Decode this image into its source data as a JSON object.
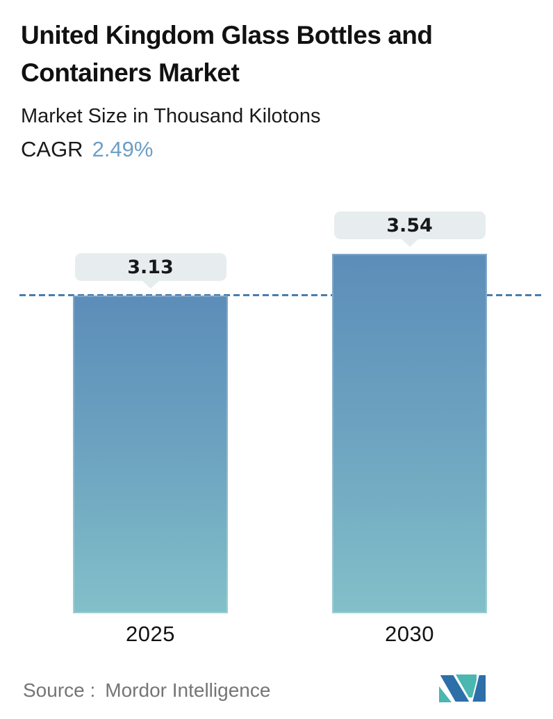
{
  "header": {
    "title": "United Kingdom Glass Bottles and Containers Market",
    "subtitle": "Market Size in Thousand Kilotons",
    "cagr_label": "CAGR",
    "cagr_value": "2.49%"
  },
  "chart_data": {
    "type": "bar",
    "title": "United Kingdom Glass Bottles and Containers Market",
    "ylabel": "Market Size in Thousand Kilotons",
    "cagr_percent": 2.49,
    "categories": [
      "2025",
      "2030"
    ],
    "values": [
      3.13,
      3.54
    ],
    "unit": "Thousand Kilotons",
    "ylim": [
      0,
      3.54
    ],
    "grid": false,
    "legend": false,
    "reference_line_value": 3.13,
    "reference_line_style": "dashed",
    "reference_line_color": "#4a7dac",
    "bar_gradient_top": "#5c8db9",
    "bar_gradient_bottom": "#82c0c9",
    "value_label_pill_bg": "#e7edee"
  },
  "footer": {
    "source_label": "Source :",
    "source_value": "Mordor Intelligence",
    "logo_name": "mordor-intelligence-logo",
    "logo_teal": "#4ab7b0",
    "logo_blue": "#2d6fa8"
  },
  "colors": {
    "background": "#ffffff",
    "title_text": "#111111",
    "cagr_value_text": "#6d9fc6",
    "source_text": "#757575"
  }
}
